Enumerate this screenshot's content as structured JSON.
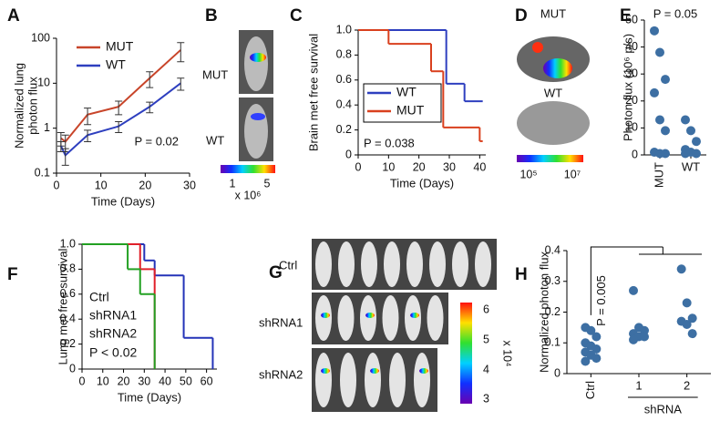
{
  "chart_data": [
    {
      "type": "line",
      "panel": "A",
      "xlabel": "Time (Days)",
      "ylabel": [
        "Normalized lung",
        "photon flux"
      ],
      "ylog": true,
      "xlim": [
        0,
        30
      ],
      "xticks": [
        0,
        10,
        20,
        30
      ],
      "ylim": [
        0.1,
        100
      ],
      "yticks": [
        0.1,
        1,
        10,
        100
      ],
      "x": [
        1,
        2,
        7,
        14,
        21,
        28
      ],
      "legend": "upper-left",
      "annotation": "P = 0.02",
      "series": [
        {
          "name": "MUT",
          "color": "#c8452a",
          "values": [
            0.6,
            0.5,
            2,
            3,
            13,
            55
          ],
          "errors": [
            0.2,
            0.2,
            0.8,
            1,
            5,
            25
          ]
        },
        {
          "name": "WT",
          "color": "#2e3fbf",
          "values": [
            0.4,
            0.25,
            0.7,
            1.1,
            3,
            10
          ],
          "errors": [
            0.1,
            0.1,
            0.2,
            0.3,
            0.8,
            3
          ]
        }
      ]
    },
    {
      "type": "step",
      "panel": "C",
      "xlabel": "Time (Days)",
      "ylabel": [
        "Brain met free survival"
      ],
      "xlim": [
        0,
        42
      ],
      "xticks": [
        0,
        10,
        20,
        30,
        40
      ],
      "ylim": [
        0,
        1
      ],
      "yticks": [
        0,
        0.2,
        0.4,
        0.6,
        0.8,
        {
          "value": 1,
          "label": "1.0"
        }
      ],
      "legend": "lower-left",
      "legend_frame": true,
      "annotation": "P = 0.038",
      "series": [
        {
          "name": "WT",
          "color": "#2e3fbf",
          "x": [
            0,
            29,
            35,
            41
          ],
          "values": [
            1,
            0.57,
            0.43,
            0.43
          ]
        },
        {
          "name": "MUT",
          "color": "#d9401e",
          "x": [
            0,
            10,
            24,
            28,
            40,
            41
          ],
          "values": [
            1,
            0.89,
            0.67,
            0.22,
            0.11,
            0.11
          ]
        }
      ]
    },
    {
      "type": "strip",
      "panel": "E",
      "title": "P = 0.05",
      "ylabel": [
        "Photon flux (10⁶ p/s)"
      ],
      "color": "#3d6fa3",
      "ylim": [
        0,
        50
      ],
      "yticks": [
        0,
        10,
        20,
        30,
        40,
        50
      ],
      "categories": [
        "MUT",
        "WT"
      ],
      "values": [
        [
          46,
          38,
          28,
          23,
          13,
          9,
          1,
          0.5,
          0.5
        ],
        [
          13,
          9,
          5,
          2,
          1,
          0.5,
          0.5
        ]
      ]
    },
    {
      "type": "step",
      "panel": "F",
      "xlabel": "Time (Days)",
      "ylabel": [
        "Lung met free survival"
      ],
      "xlim": [
        0,
        65
      ],
      "xticks": [
        0,
        10,
        20,
        30,
        40,
        50,
        60
      ],
      "ylim": [
        0,
        1
      ],
      "yticks": [
        0,
        0.2,
        0.4,
        0.6,
        0.8,
        {
          "value": 1,
          "label": "1.0"
        }
      ],
      "legend": "lower-left",
      "legend_frame": false,
      "annotation": "P < 0.02",
      "series": [
        {
          "name": "Ctrl",
          "color": "#2433b8",
          "x": [
            0,
            30,
            35,
            49,
            63
          ],
          "values": [
            1,
            0.87,
            0.75,
            0.25,
            0
          ]
        },
        {
          "name": "shRNA1",
          "color": "#e0202a",
          "x": [
            0,
            28,
            35
          ],
          "values": [
            1,
            0.8,
            0
          ]
        },
        {
          "name": "shRNA2",
          "color": "#22a022",
          "x": [
            0,
            22,
            28,
            35
          ],
          "values": [
            1,
            0.8,
            0.6,
            0
          ]
        }
      ]
    },
    {
      "type": "strip",
      "panel": "H",
      "ylabel": [
        "Normalized photon flux"
      ],
      "color": "#3d6fa3",
      "ylim": [
        0,
        0.4
      ],
      "yticks": [
        0,
        0.1,
        0.2,
        0.3,
        0.4
      ],
      "categories": [
        "Ctrl",
        "1",
        "2"
      ],
      "group_label": "shRNA",
      "annotation": "P = 0.005",
      "values": [
        [
          0.15,
          0.14,
          0.12,
          0.1,
          0.09,
          0.08,
          0.07,
          0.06,
          0.05,
          0.04
        ],
        [
          0.27,
          0.15,
          0.14,
          0.13,
          0.12,
          0.12,
          0.11
        ],
        [
          0.34,
          0.23,
          0.18,
          0.17,
          0.16,
          0.13
        ]
      ]
    }
  ],
  "figures": [
    {
      "panel": "B",
      "labels": [
        "MUT",
        "WT"
      ],
      "colorbar": [
        "1",
        "5"
      ],
      "unit": "x 10⁶"
    },
    {
      "panel": "D",
      "labels": [
        "MUT",
        "WT"
      ],
      "colorbar": [
        "10⁵",
        "10⁷"
      ]
    },
    {
      "panel": "G",
      "labels": [
        "Ctrl",
        "shRNA1",
        "shRNA2"
      ],
      "colorbar": [
        "6",
        "5",
        "4",
        "3"
      ],
      "unit": "x 10⁴"
    }
  ]
}
